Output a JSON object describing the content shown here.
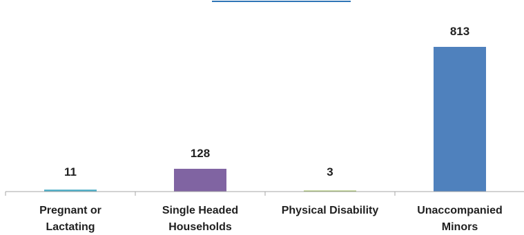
{
  "chart_data": {
    "type": "bar",
    "title": "",
    "xlabel": "",
    "ylabel": "",
    "categories": [
      [
        "Pregnant or",
        "Lactating"
      ],
      [
        "Single Headed",
        "Households"
      ],
      [
        "Physical Disability"
      ],
      [
        "Unaccompanied",
        "Minors"
      ]
    ],
    "values": [
      11,
      128,
      3,
      813
    ],
    "data_labels": [
      "11",
      "128",
      "3",
      "813"
    ],
    "bar_colors": [
      "#4bacc6",
      "#8064a2",
      "#9bbb59",
      "#4f81bd"
    ],
    "ylim": [
      0,
      813
    ],
    "grid": false,
    "legend": "none"
  },
  "colors": {
    "axis": "#a6a6a6",
    "text": "#1f1f1f",
    "header_accent": "#2e75b6"
  }
}
